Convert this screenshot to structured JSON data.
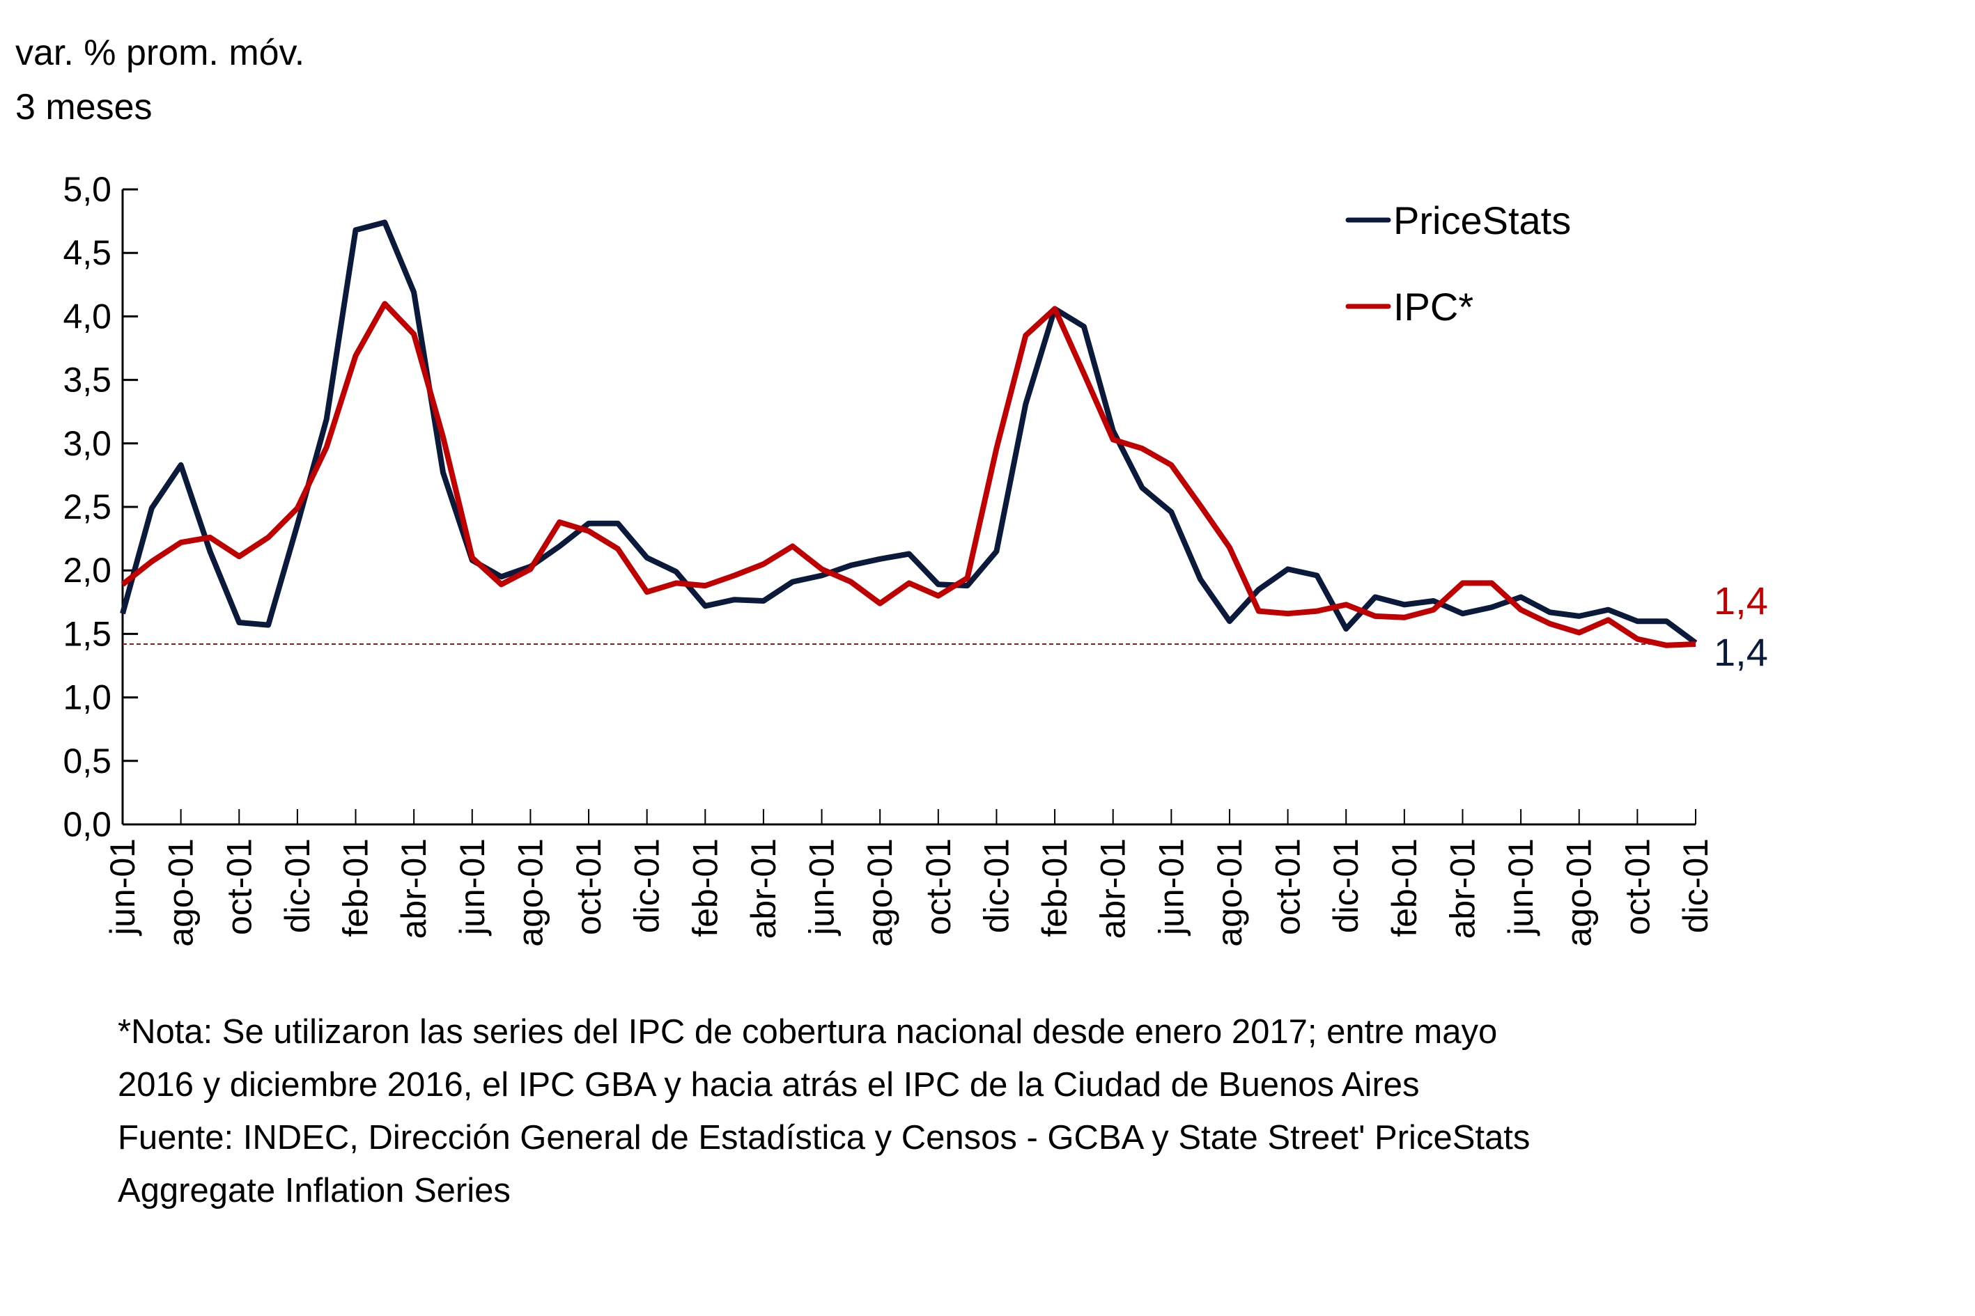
{
  "chart_data": {
    "type": "line",
    "title": "",
    "ylabel_lines": [
      "var. % prom. móv.",
      "3 meses"
    ],
    "xlabel": "",
    "ylim": [
      0,
      5
    ],
    "yticks": [
      0,
      0.5,
      1,
      1.5,
      2,
      2.5,
      3,
      3.5,
      4,
      4.5,
      5
    ],
    "ytick_labels": [
      "0,0",
      "0,5",
      "1,0",
      "1,5",
      "2,0",
      "2,5",
      "3,0",
      "3,5",
      "4,0",
      "4,5",
      "5,0"
    ],
    "x_tick_labels": [
      "jun-01",
      "ago-01",
      "oct-01",
      "dic-01",
      "feb-01",
      "abr-01",
      "jun-01",
      "ago-01",
      "oct-01",
      "dic-01",
      "feb-01",
      "abr-01",
      "jun-01",
      "ago-01",
      "oct-01",
      "dic-01",
      "feb-01",
      "abr-01",
      "jun-01",
      "ago-01",
      "oct-01",
      "dic-01",
      "feb-01",
      "abr-01",
      "jun-01",
      "ago-01",
      "oct-01",
      "dic-01"
    ],
    "x_label_every": 2,
    "n_points": 55,
    "grid": false,
    "legend_position": "top-right",
    "series": [
      {
        "name": "PriceStats",
        "color": "#0b1a3a",
        "end_label": "1,4",
        "values": [
          1.66,
          2.49,
          2.83,
          2.15,
          1.59,
          1.57,
          2.36,
          3.19,
          4.68,
          4.74,
          4.19,
          2.77,
          2.08,
          1.95,
          2.03,
          2.19,
          2.37,
          2.37,
          2.1,
          1.99,
          1.72,
          1.77,
          1.76,
          1.91,
          1.96,
          2.04,
          2.09,
          2.13,
          1.89,
          1.88,
          2.15,
          3.31,
          4.06,
          3.92,
          3.1,
          2.65,
          2.46,
          1.93,
          1.6,
          1.85,
          2.01,
          1.96,
          1.54,
          1.79,
          1.73,
          1.76,
          1.66,
          1.71,
          1.79,
          1.67,
          1.64,
          1.69,
          1.6,
          1.6,
          1.43
        ]
      },
      {
        "name": "IPC*",
        "color": "#c00000",
        "end_label": "1,4",
        "values": [
          1.89,
          2.07,
          2.22,
          2.26,
          2.11,
          2.26,
          2.49,
          2.97,
          3.69,
          4.1,
          3.86,
          3.05,
          2.1,
          1.89,
          2.01,
          2.38,
          2.31,
          2.17,
          1.83,
          1.9,
          1.88,
          1.96,
          2.05,
          2.19,
          2.01,
          1.91,
          1.74,
          1.9,
          1.8,
          1.94,
          2.96,
          3.85,
          4.06,
          3.55,
          3.03,
          2.96,
          2.83,
          2.51,
          2.18,
          1.68,
          1.66,
          1.68,
          1.73,
          1.64,
          1.63,
          1.69,
          1.9,
          1.9,
          1.69,
          1.58,
          1.51,
          1.61,
          1.46,
          1.41,
          1.42
        ]
      }
    ],
    "reference_line": {
      "value": 1.42,
      "color": "#8b1a1a",
      "style": "dashed"
    }
  },
  "footnotes": [
    "*Nota: Se utilizaron las series del IPC de cobertura nacional desde enero 2017; entre mayo",
    "2016 y diciembre 2016, el IPC GBA y hacia atrás el IPC de la Ciudad de Buenos Aires",
    "Fuente: INDEC, Dirección General de Estadística y Censos - GCBA y State Street' PriceStats",
    "Aggregate Inflation Series"
  ]
}
